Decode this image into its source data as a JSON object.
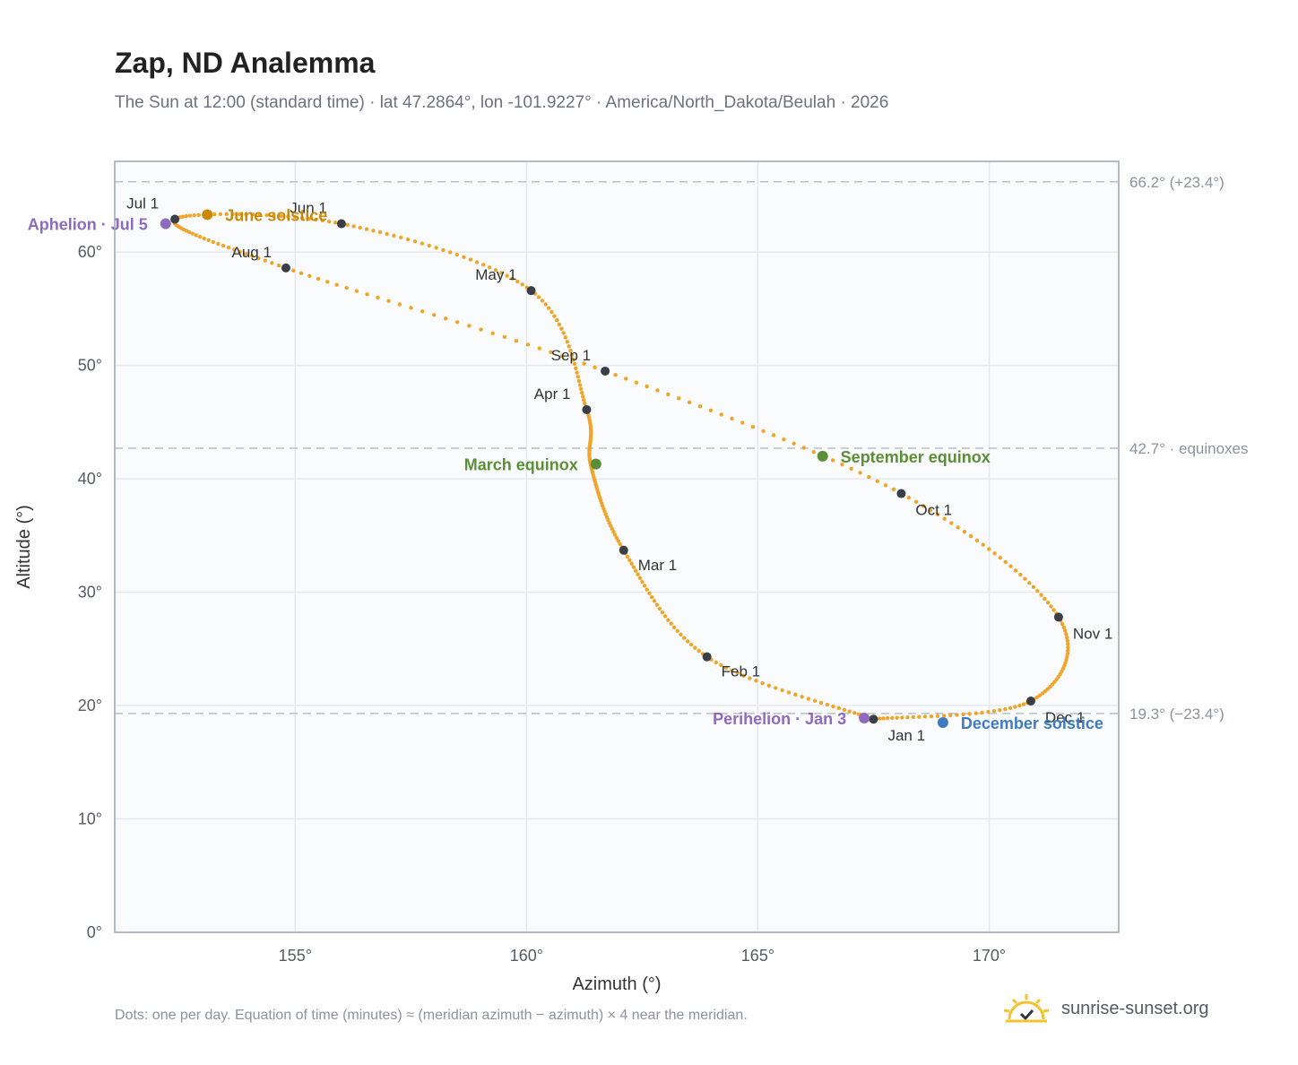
{
  "title": "Zap, ND Analemma",
  "subtitle": "The Sun at 12:00 (standard time) · lat 47.2864°, lon -101.9227° · America/North_Dakota/Beulah · 2026",
  "footnote": "Dots: one per day. Equation of time (minutes) ≈ (meridian azimuth − azimuth) × 4 near the meridian.",
  "brand": {
    "name": "sunrise-sunset.org",
    "icon": "sun-logo-icon"
  },
  "colors": {
    "path": "#f0a52a",
    "month_dot": "#3a3f47",
    "solstice_june": "#c98a0a",
    "solstice_december": "#3f7bbf",
    "equinox": "#5a8f35",
    "apsis": "#8e6bbf",
    "reference_line": "#b7c0c9",
    "plot_bg": "#f9fbfd",
    "grid": "#e4e9ef"
  },
  "chart_data": {
    "type": "scatter",
    "title": "Zap, ND Analemma",
    "xlabel": "Azimuth (°)",
    "ylabel": "Altitude (°)",
    "xlim": [
      151.1,
      172.8
    ],
    "ylim": [
      0,
      68
    ],
    "x_ticks": [
      155,
      160,
      165,
      170
    ],
    "x_tick_labels": [
      "155°",
      "160°",
      "165°",
      "170°"
    ],
    "y_ticks": [
      0,
      10,
      20,
      30,
      40,
      50,
      60
    ],
    "y_tick_labels": [
      "0°",
      "10°",
      "20°",
      "30°",
      "40°",
      "50°",
      "60°"
    ],
    "grid": true,
    "path_nodes": [
      {
        "x": 167.5,
        "y": 18.8
      },
      {
        "x": 163.9,
        "y": 24.3
      },
      {
        "x": 162.1,
        "y": 33.7
      },
      {
        "x": 161.4,
        "y": 41.0
      },
      {
        "x": 161.3,
        "y": 46.1
      },
      {
        "x": 160.1,
        "y": 56.6
      },
      {
        "x": 156.0,
        "y": 62.5
      },
      {
        "x": 152.4,
        "y": 62.9
      },
      {
        "x": 154.8,
        "y": 58.6
      },
      {
        "x": 161.7,
        "y": 49.5
      },
      {
        "x": 168.1,
        "y": 38.7
      },
      {
        "x": 171.5,
        "y": 27.8
      },
      {
        "x": 170.9,
        "y": 20.4
      },
      {
        "x": 167.5,
        "y": 18.8
      }
    ],
    "months": [
      {
        "label": "Jan 1",
        "x": 167.5,
        "y": 18.8
      },
      {
        "label": "Feb 1",
        "x": 163.9,
        "y": 24.3
      },
      {
        "label": "Mar 1",
        "x": 162.1,
        "y": 33.7
      },
      {
        "label": "Apr 1",
        "x": 161.3,
        "y": 46.1
      },
      {
        "label": "May 1",
        "x": 160.1,
        "y": 56.6
      },
      {
        "label": "Jun 1",
        "x": 156.0,
        "y": 62.5
      },
      {
        "label": "Jul 1",
        "x": 152.4,
        "y": 62.9
      },
      {
        "label": "Aug 1",
        "x": 154.8,
        "y": 58.6
      },
      {
        "label": "Sep 1",
        "x": 161.7,
        "y": 49.5
      },
      {
        "label": "Oct 1",
        "x": 168.1,
        "y": 38.7
      },
      {
        "label": "Nov 1",
        "x": 171.5,
        "y": 27.8
      },
      {
        "label": "Dec 1",
        "x": 170.9,
        "y": 20.4
      }
    ],
    "events": [
      {
        "label": "June solstice",
        "x": 153.1,
        "y": 63.3,
        "color": "#c98a0a",
        "anchor": "start"
      },
      {
        "label": "Aphelion · Jul 5",
        "x": 152.2,
        "y": 62.5,
        "color": "#8e6bbf",
        "anchor": "end"
      },
      {
        "label": "March equinox",
        "x": 161.5,
        "y": 41.3,
        "color": "#5a8f35",
        "anchor": "end"
      },
      {
        "label": "September equinox",
        "x": 166.4,
        "y": 42.0,
        "color": "#5a8f35",
        "anchor": "start"
      },
      {
        "label": "Perihelion · Jan 3",
        "x": 167.3,
        "y": 18.9,
        "color": "#8e6bbf",
        "anchor": "end"
      },
      {
        "label": "December solstice",
        "x": 169.0,
        "y": 18.5,
        "color": "#3f7bbf",
        "anchor": "start"
      }
    ],
    "reference_lines": [
      {
        "y": 66.2,
        "label": "66.2° (+23.4°)"
      },
      {
        "y": 42.7,
        "label": "42.7° · equinoxes"
      },
      {
        "y": 19.3,
        "label": "19.3° (−23.4°)"
      }
    ]
  }
}
